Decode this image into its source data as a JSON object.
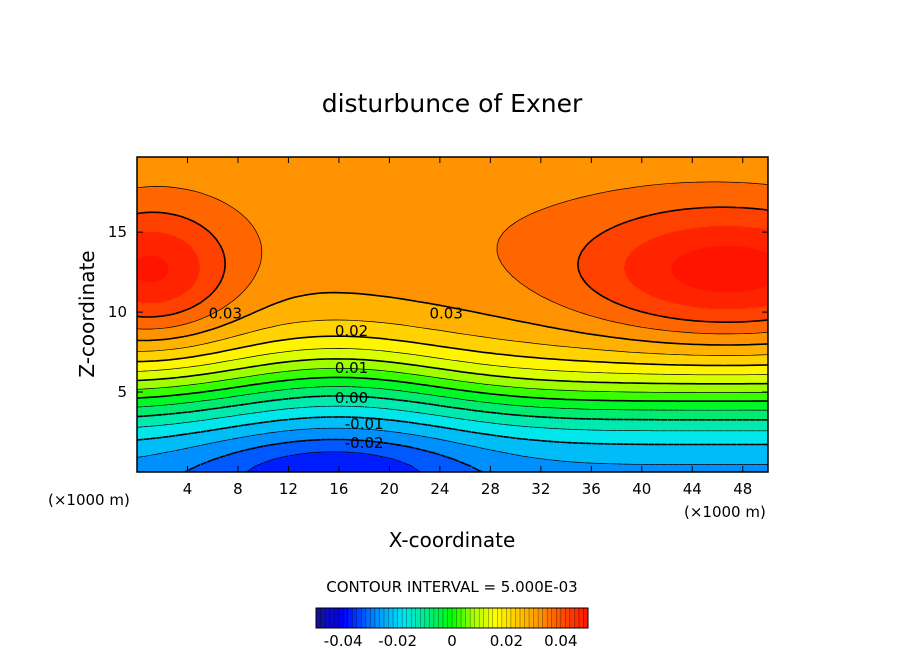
{
  "chart_data": {
    "type": "heatmap",
    "title": "disturbunce of Exner",
    "xlabel": "X-coordinate",
    "ylabel": "Z-coordinate",
    "xlim": [
      0,
      50
    ],
    "ylim": [
      0,
      19.7
    ],
    "xunit_left": "(×1000 m)",
    "xunit_right": "(×1000 m)",
    "xticks": [
      4,
      8,
      12,
      16,
      20,
      24,
      28,
      32,
      36,
      40,
      44,
      48
    ],
    "yticks": [
      5,
      10,
      15
    ],
    "contour_interval_text": "CONTOUR INTERVAL = 5.000E-03",
    "contour_labels": [
      {
        "text": "0.03",
        "x": 7.0,
        "z": 9.6
      },
      {
        "text": "0.03",
        "x": 24.5,
        "z": 9.6
      },
      {
        "text": "0.02",
        "x": 17.0,
        "z": 8.5
      },
      {
        "text": "0.01",
        "x": 17.0,
        "z": 6.2
      },
      {
        "text": "0.00",
        "x": 17.0,
        "z": 4.3
      },
      {
        "text": "-0.01",
        "x": 18.0,
        "z": 2.7
      },
      {
        "text": "-0.02",
        "x": 18.0,
        "z": 1.5
      }
    ],
    "colorbar": {
      "min": -0.05,
      "max": 0.05,
      "ticks": [
        "-0.04",
        "-0.02",
        "0",
        "0.02",
        "0.04"
      ]
    },
    "colors": {
      "dark_blue": "#0000ff",
      "cyan": "#00d0ff",
      "green": "#00ff00",
      "yellow": "#ffff00",
      "orange": "#ff9900",
      "red": "#ff2000"
    }
  }
}
